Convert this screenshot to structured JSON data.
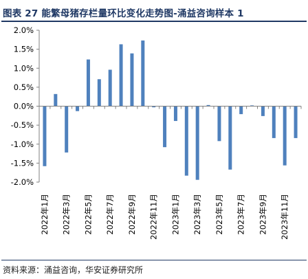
{
  "header": {
    "title": "图表 27  能繁母猪存栏量环比变化走势图-涌益咨询样本 1"
  },
  "footer": {
    "source": "资料来源：涌益咨询，华安证券研究所"
  },
  "chart_data": {
    "type": "bar",
    "title": "",
    "xlabel": "",
    "ylabel": "",
    "ylim": [
      -2.0,
      2.0
    ],
    "y_ticks": [
      "2.0%",
      "1.5%",
      "1.0%",
      "0.5%",
      "0.0%",
      "-0.5%",
      "-1.0%",
      "-1.5%",
      "-2.0%"
    ],
    "y_tick_values": [
      2.0,
      1.5,
      1.0,
      0.5,
      0.0,
      -0.5,
      -1.0,
      -1.5,
      -2.0
    ],
    "value_unit": "%",
    "grid": false,
    "legend": "none",
    "bar_color": "#4f81bd",
    "x_tick_labels": [
      "2022年1月",
      "2022年3月",
      "2022年5月",
      "2022年7月",
      "2022年9月",
      "2022年11月",
      "2023年1月",
      "2023年3月",
      "2023年5月",
      "2023年7月",
      "2023年9月",
      "2023年11月"
    ],
    "categories": [
      "2022年1月",
      "2022年2月",
      "2022年3月",
      "2022年4月",
      "2022年5月",
      "2022年6月",
      "2022年7月",
      "2022年8月",
      "2022年9月",
      "2022年10月",
      "2022年11月",
      "2022年12月",
      "2023年1月",
      "2023年2月",
      "2023年3月",
      "2023年4月",
      "2023年5月",
      "2023年6月",
      "2023年7月",
      "2023年8月",
      "2023年9月",
      "2023年10月",
      "2023年11月",
      "2023年12月"
    ],
    "values": [
      -1.58,
      0.32,
      -1.22,
      -0.13,
      1.23,
      0.71,
      0.96,
      1.63,
      1.39,
      1.73,
      -0.03,
      -1.08,
      -0.39,
      -1.83,
      -1.94,
      0.03,
      -0.92,
      -1.67,
      -0.21,
      0.02,
      -0.26,
      -0.84,
      -1.56,
      -0.84
    ]
  }
}
